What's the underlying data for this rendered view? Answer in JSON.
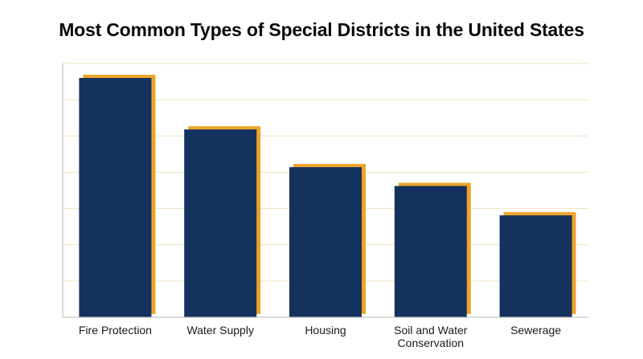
{
  "chart_data": {
    "type": "bar",
    "title": "Most Common Types of Special Districts in the United States",
    "xlabel": "",
    "ylabel": "",
    "categories": [
      [
        "Fire Protection"
      ],
      [
        "Water Supply"
      ],
      [
        "Housing"
      ],
      [
        "Soil and Water",
        "Conservation"
      ],
      [
        "Sewerage"
      ]
    ],
    "values": [
      6600,
      5180,
      4140,
      3620,
      2810
    ],
    "ylim": [
      0,
      7000
    ],
    "gridlines": [
      0,
      1000,
      2000,
      3000,
      4000,
      5000,
      6000,
      7000
    ],
    "y_tick_labels_shown": false,
    "grid": true,
    "legend": "none",
    "colors": {
      "bar": "#14325e",
      "bar_shadow": "#eea42a",
      "grid": "#f1e3bf",
      "axis": "#b9b9b9"
    }
  }
}
